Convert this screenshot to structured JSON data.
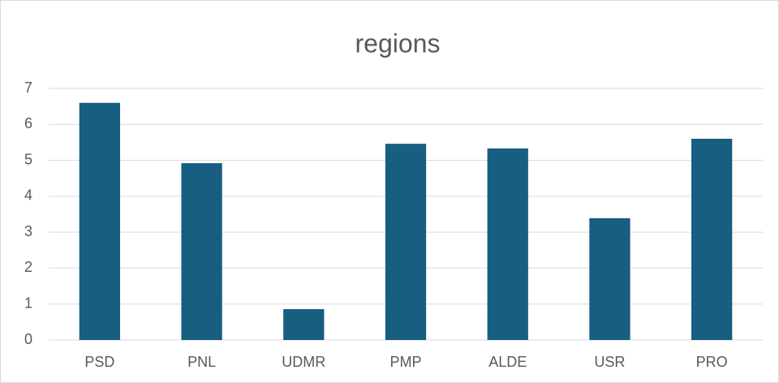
{
  "chart_data": {
    "type": "bar",
    "title": "regions",
    "categories": [
      "PSD",
      "PNL",
      "UDMR",
      "PMP",
      "ALDE",
      "USR",
      "PRO"
    ],
    "values": [
      6.6,
      4.92,
      0.86,
      5.46,
      5.33,
      3.39,
      5.6
    ],
    "color": "#175e80",
    "ylim": [
      0,
      7
    ],
    "yticks": [
      0,
      1,
      2,
      3,
      4,
      5,
      6,
      7
    ],
    "grid": true
  }
}
